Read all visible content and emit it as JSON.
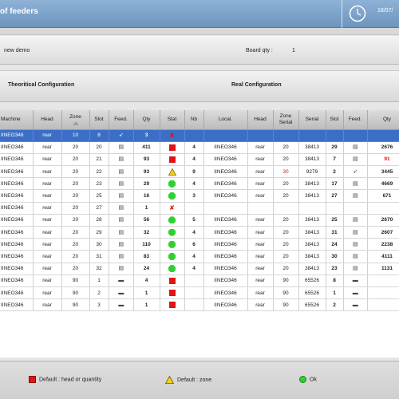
{
  "header": {
    "title": "of feeders",
    "clock_text": "18/07/"
  },
  "info": {
    "program_name": "new demo",
    "board_qty_label": "Board qty :",
    "board_qty_value": "1"
  },
  "config": {
    "theoretical_label": "Theoritical Configuration",
    "real_label": "Real Configuration"
  },
  "table": {
    "columns": [
      "Machine",
      "Head",
      "Zone",
      "Slot",
      "Feed.",
      "Qty",
      "Stat",
      "Nb",
      "Local.",
      "Head",
      "Zone Serial",
      "Serial",
      "Slot",
      "Feed.",
      "Qty"
    ],
    "rows": [
      {
        "machine": "IINEO346",
        "head": "rear",
        "zone": "10",
        "slot": "8",
        "feed": "blade",
        "qty": "3",
        "stat": "x",
        "nb": "",
        "local": "",
        "head2": "",
        "zone2": "",
        "serial": "",
        "slot2": "",
        "feed2": "",
        "qty2": "",
        "selected": true
      },
      {
        "machine": "IINEO346",
        "head": "rear",
        "zone": "20",
        "slot": "20",
        "feed": "tray",
        "qty": "411",
        "stat": "red",
        "nb": "4",
        "local": "IINEO346",
        "head2": "rear",
        "zone2": "20",
        "serial": "38413",
        "slot2": "29",
        "feed2": "tray",
        "qty2": "2676"
      },
      {
        "machine": "IINEO346",
        "head": "rear",
        "zone": "20",
        "slot": "21",
        "feed": "tray",
        "qty": "93",
        "stat": "red",
        "nb": "4",
        "local": "IINEO346",
        "head2": "rear",
        "zone2": "20",
        "serial": "38413",
        "slot2": "7",
        "feed2": "tray",
        "qty2": "91",
        "qty2_red": true
      },
      {
        "machine": "IINEO346",
        "head": "rear",
        "zone": "20",
        "slot": "22",
        "feed": "tray",
        "qty": "93",
        "stat": "yellow",
        "nb": "9",
        "local": "IINEO346",
        "head2": "rear",
        "zone2": "30",
        "zone2_red": true,
        "serial": "9279",
        "slot2": "2",
        "feed2": "blade",
        "qty2": "3445"
      },
      {
        "machine": "IINEO346",
        "head": "rear",
        "zone": "20",
        "slot": "23",
        "feed": "tray",
        "qty": "29",
        "stat": "green",
        "nb": "4",
        "local": "IINEO346",
        "head2": "rear",
        "zone2": "20",
        "serial": "38413",
        "slot2": "17",
        "feed2": "tray",
        "qty2": "4669"
      },
      {
        "machine": "IINEO346",
        "head": "rear",
        "zone": "20",
        "slot": "25",
        "feed": "tray",
        "qty": "16",
        "stat": "green",
        "nb": "3",
        "local": "IINEO346",
        "head2": "rear",
        "zone2": "20",
        "serial": "38413",
        "slot2": "27",
        "feed2": "tray",
        "qty2": "671"
      },
      {
        "machine": "IINEO346",
        "head": "rear",
        "zone": "20",
        "slot": "27",
        "feed": "tray",
        "qty": "1",
        "stat": "x",
        "nb": "",
        "local": "",
        "head2": "",
        "zone2": "",
        "serial": "",
        "slot2": "",
        "feed2": "",
        "qty2": ""
      },
      {
        "machine": "IINEO346",
        "head": "rear",
        "zone": "20",
        "slot": "28",
        "feed": "tray",
        "qty": "56",
        "stat": "green",
        "nb": "5",
        "local": "IINEO346",
        "head2": "rear",
        "zone2": "20",
        "serial": "38413",
        "slot2": "25",
        "feed2": "tray",
        "qty2": "2670"
      },
      {
        "machine": "IINEO346",
        "head": "rear",
        "zone": "20",
        "slot": "29",
        "feed": "tray",
        "qty": "32",
        "stat": "green",
        "nb": "4",
        "local": "IINEO346",
        "head2": "rear",
        "zone2": "20",
        "serial": "38413",
        "slot2": "31",
        "feed2": "tray",
        "qty2": "2607"
      },
      {
        "machine": "IINEO346",
        "head": "rear",
        "zone": "20",
        "slot": "30",
        "feed": "tray",
        "qty": "110",
        "stat": "green",
        "nb": "6",
        "local": "IINEO346",
        "head2": "rear",
        "zone2": "20",
        "serial": "38413",
        "slot2": "24",
        "feed2": "tray",
        "qty2": "2238"
      },
      {
        "machine": "IINEO346",
        "head": "rear",
        "zone": "20",
        "slot": "31",
        "feed": "tray",
        "qty": "83",
        "stat": "green",
        "nb": "4",
        "local": "IINEO346",
        "head2": "rear",
        "zone2": "20",
        "serial": "38413",
        "slot2": "30",
        "feed2": "tray",
        "qty2": "4111"
      },
      {
        "machine": "IINEO346",
        "head": "rear",
        "zone": "20",
        "slot": "32",
        "feed": "tray",
        "qty": "24",
        "stat": "green",
        "nb": "4",
        "local": "IINEO346",
        "head2": "rear",
        "zone2": "20",
        "serial": "38413",
        "slot2": "23",
        "feed2": "tray",
        "qty2": "1131"
      },
      {
        "machine": "IINEO346",
        "head": "rear",
        "zone": "90",
        "slot": "1",
        "feed": "stick",
        "qty": "4",
        "stat": "red",
        "nb": "",
        "local": "IINEO346",
        "head2": "rear",
        "zone2": "90",
        "serial": "65526",
        "slot2": "8",
        "feed2": "stick",
        "qty2": ""
      },
      {
        "machine": "IINEO346",
        "head": "rear",
        "zone": "90",
        "slot": "2",
        "feed": "stick",
        "qty": "1",
        "stat": "red",
        "nb": "",
        "local": "IINEO346",
        "head2": "rear",
        "zone2": "90",
        "serial": "65526",
        "slot2": "1",
        "feed2": "stick",
        "qty2": ""
      },
      {
        "machine": "IINEO346",
        "head": "rear",
        "zone": "90",
        "slot": "3",
        "feed": "stick",
        "qty": "1",
        "stat": "red",
        "nb": "",
        "local": "IINEO346",
        "head2": "rear",
        "zone2": "90",
        "serial": "65526",
        "slot2": "2",
        "feed2": "stick",
        "qty2": ""
      }
    ]
  },
  "legend": {
    "red_label": "Default : head or quantity",
    "yellow_label": "Default : zone",
    "green_label": "Ok"
  },
  "colors": {
    "selected_row": "#3b6fc7",
    "status_red": "#e11414",
    "status_green": "#2fd12f",
    "status_yellow": "#f2d21a"
  }
}
